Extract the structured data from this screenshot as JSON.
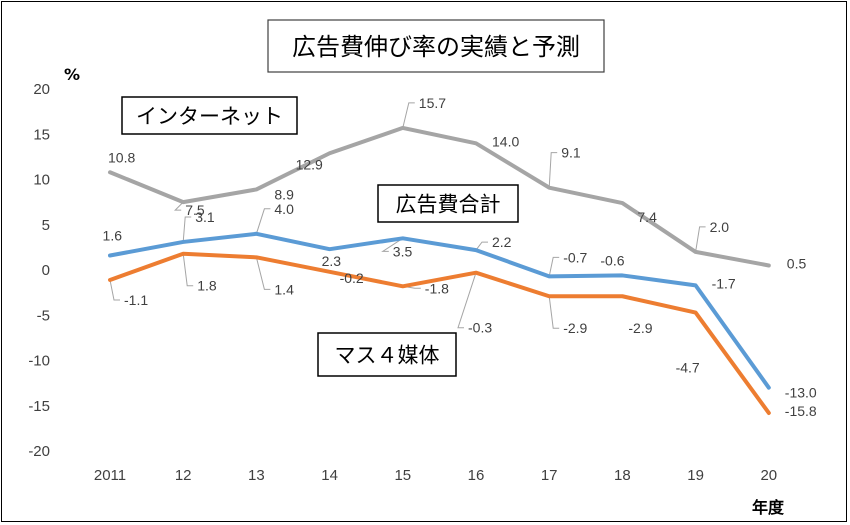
{
  "chart_data": {
    "type": "line",
    "title": "広告費伸び率の実績と予測",
    "ylabel": "%",
    "xlabel": "年度",
    "categories": [
      "2011",
      "12",
      "13",
      "14",
      "15",
      "16",
      "17",
      "18",
      "19",
      "20"
    ],
    "ylim": [
      -20,
      20
    ],
    "yticks": [
      20,
      15,
      10,
      5,
      0,
      -5,
      -10,
      -15,
      -20
    ],
    "grid": false,
    "series": [
      {
        "name": "インターネット",
        "color": "#a5a5a5",
        "values": [
          10.8,
          7.5,
          8.9,
          12.9,
          15.7,
          14.0,
          9.1,
          7.4,
          2.0,
          0.5
        ],
        "labels": [
          "10.8",
          "7.5",
          "8.9",
          "12.9",
          "15.7",
          "14.0",
          "9.1",
          "7.4",
          "2.0",
          "0.5"
        ]
      },
      {
        "name": "広告費合計",
        "color": "#5b9bd5",
        "values": [
          1.6,
          3.1,
          4.0,
          2.3,
          3.5,
          2.2,
          -0.7,
          -0.6,
          -1.7,
          -13.0
        ],
        "labels": [
          "1.6",
          "3.1",
          "4.0",
          "2.3",
          "3.5",
          "2.2",
          "-0.7",
          "-0.6",
          "-1.7",
          "-13.0"
        ]
      },
      {
        "name": "マス４媒体",
        "color": "#ed7d31",
        "values": [
          -1.1,
          1.8,
          1.4,
          -0.2,
          -1.8,
          -0.3,
          -2.9,
          -2.9,
          -4.7,
          -15.8
        ],
        "labels": [
          "-1.1",
          "1.8",
          "1.4",
          "-0.2",
          "-1.8",
          "-0.3",
          "-2.9",
          "-2.9",
          "-4.7",
          "-15.8"
        ]
      }
    ]
  }
}
